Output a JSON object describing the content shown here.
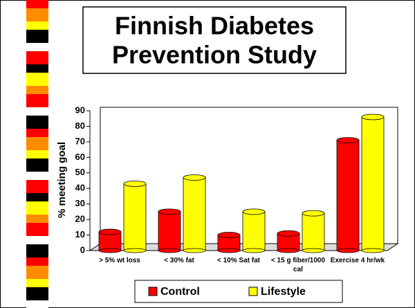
{
  "chart_data": {
    "type": "bar",
    "title": "Finnish Diabetes Prevention Study",
    "y_label": "% meeting goal",
    "categories": [
      "> 5% wt loss",
      "< 30% fat",
      "< 10% Sat fat",
      "< 15 g fiber/1000 cal",
      "Exercise 4 hr/wk"
    ],
    "series": [
      {
        "name": "Control",
        "color": "#ff0000",
        "values": [
          12,
          25,
          10,
          11,
          71
        ]
      },
      {
        "name": "Lifestyle",
        "color": "#ffff00",
        "values": [
          43,
          47,
          25,
          24,
          86
        ]
      }
    ],
    "ylim": [
      0,
      90
    ],
    "yticks": [
      0,
      10,
      20,
      30,
      40,
      50,
      60,
      70,
      80,
      90
    ]
  }
}
